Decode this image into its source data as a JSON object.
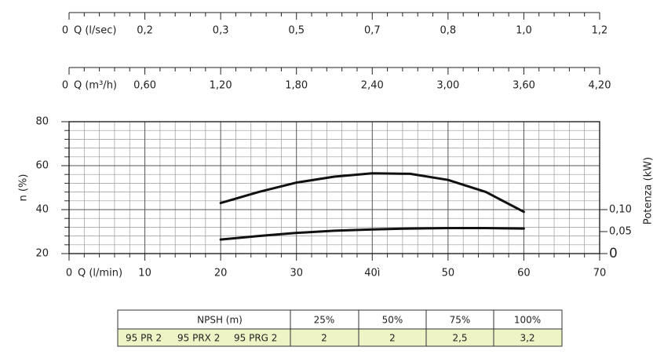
{
  "chart_data": {
    "type": "line",
    "x_label": "Q (l/min)",
    "y_label": "n (%)",
    "y2_label": "Potenza (kW)",
    "x": [
      20,
      25,
      30,
      35,
      40,
      45,
      50,
      55,
      60
    ],
    "series": [
      {
        "color": "#111111",
        "values": [
          43,
          48,
          52.3,
          55,
          56.5,
          56.3,
          53.5,
          48,
          39
        ]
      },
      {
        "color": "#111111",
        "axis": "y2",
        "values": [
          0.032,
          0.04,
          0.047,
          0.052,
          0.055,
          0.057,
          0.058,
          0.058,
          0.057
        ]
      }
    ],
    "xlim": [
      0,
      70
    ],
    "xticks": [
      0,
      10,
      20,
      30,
      {
        "value": 40,
        "label": "40ì"
      },
      50,
      60,
      70
    ],
    "ylim": [
      20,
      80
    ],
    "yticks": [
      20,
      40,
      60,
      80
    ],
    "y2lim": [
      0,
      0.3
    ],
    "y2ticks": [
      0,
      {
        "value": 0.05,
        "label": "0,05"
      },
      {
        "value": 0.1,
        "label": "0,10"
      }
    ],
    "grid": true,
    "secondary_x_axes": [
      {
        "label": "Q (l/sec)",
        "ticks": [
          0,
          {
            "value": 0.2,
            "label": "0,2"
          },
          {
            "value": 0.3,
            "label": "0,3"
          },
          {
            "value": 0.5,
            "label": "0,5"
          },
          {
            "value": 0.7,
            "label": "0,7"
          },
          {
            "value": 0.8,
            "label": "0,8"
          },
          {
            "value": 1.0,
            "label": "1,0"
          },
          {
            "value": 1.2,
            "label": "1,2"
          }
        ]
      },
      {
        "label": "Q (m³/h)",
        "ticks": [
          0,
          {
            "value": 0.6,
            "label": "0,60"
          },
          {
            "value": 1.2,
            "label": "1,20"
          },
          {
            "value": 1.8,
            "label": "1,80"
          },
          {
            "value": 2.4,
            "label": "2,40"
          },
          {
            "value": 3.0,
            "label": "3,00"
          },
          {
            "value": 3.6,
            "label": "3,60"
          },
          {
            "value": 4.2,
            "label": "4,20"
          }
        ]
      }
    ]
  },
  "npsh_table": {
    "header": [
      "NPSH (m)",
      "25%",
      "50%",
      "75%",
      "100%"
    ],
    "models": [
      "95 PR 2",
      "95 PRX 2",
      "95 PRG 2"
    ],
    "values": [
      "2",
      "2",
      "2,5",
      "3,2"
    ]
  }
}
